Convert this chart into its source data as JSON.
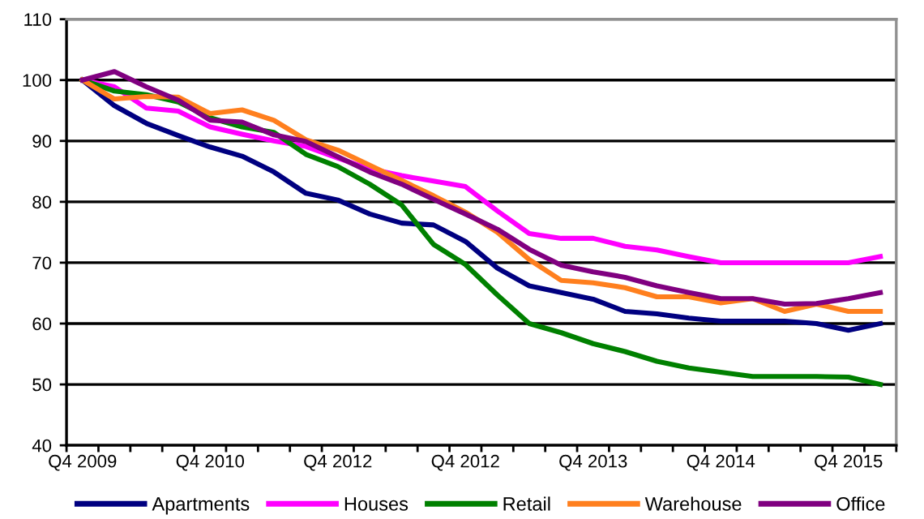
{
  "chart_data": {
    "type": "line",
    "categories": [
      "Q4 2009",
      null,
      null,
      null,
      "Q4 2010",
      null,
      null,
      null,
      "Q4 2012",
      null,
      null,
      null,
      "Q4 2012",
      null,
      null,
      null,
      "Q4 2013",
      null,
      null,
      null,
      "Q4 2014",
      null,
      null,
      null,
      "Q4 2015",
      null
    ],
    "series": [
      {
        "name": "Apartments",
        "color": "#000080",
        "values": [
          100,
          95.8,
          92.9,
          90.9,
          89,
          87.5,
          84.9,
          81.4,
          80.3,
          78,
          76.5,
          76.2,
          73.5,
          69.1,
          66.2,
          65.1,
          64,
          62,
          61.6,
          60.9,
          60.4,
          60.4,
          60.4,
          60,
          58.9,
          60
        ]
      },
      {
        "name": "Houses",
        "color": "#ff00ff",
        "values": [
          100,
          98.9,
          95.4,
          94.9,
          92.3,
          91.1,
          90,
          89.1,
          87.2,
          85.4,
          84.3,
          83.4,
          82.5,
          78.5,
          74.8,
          74,
          74,
          72.7,
          72.1,
          71,
          70,
          70,
          70,
          70,
          70,
          71
        ]
      },
      {
        "name": "Retail",
        "color": "#008000",
        "values": [
          100,
          98.2,
          97.6,
          96.4,
          93.8,
          92.3,
          91.4,
          87.8,
          85.8,
          82.9,
          79.5,
          73,
          69.7,
          64.7,
          60,
          58.5,
          56.7,
          55.4,
          53.8,
          52.7,
          52,
          51.3,
          51.3,
          51.3,
          51.2,
          50
        ]
      },
      {
        "name": "Warehouse",
        "color": "#ff7f1e",
        "values": [
          100,
          96.9,
          97.3,
          97.2,
          94.5,
          95.1,
          93.4,
          90.2,
          88.5,
          86,
          83.5,
          81,
          78.3,
          75,
          70.5,
          67.1,
          66.7,
          65.9,
          64.4,
          64.4,
          63.4,
          64.1,
          62,
          63.2,
          62,
          62
        ]
      },
      {
        "name": "Office",
        "color": "#800080",
        "values": [
          100,
          101.4,
          98.9,
          96.7,
          93.4,
          93.1,
          91,
          89.9,
          87.4,
          84.9,
          82.9,
          80.4,
          78,
          75.5,
          72.2,
          69.6,
          68.5,
          67.6,
          66.2,
          65.1,
          64.1,
          64.1,
          63.2,
          63.3,
          64.1,
          65.1
        ]
      }
    ],
    "ylim": [
      40,
      110
    ],
    "yticks": [
      40,
      50,
      60,
      70,
      80,
      90,
      100,
      110
    ],
    "grid": "y",
    "legend": "bottom",
    "marker": "none",
    "line_style": "solid"
  }
}
